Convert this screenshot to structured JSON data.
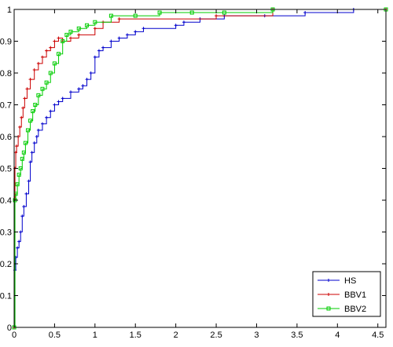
{
  "chart_data": {
    "type": "line",
    "title": "",
    "xlabel": "",
    "ylabel": "",
    "xlim": [
      0,
      4.6
    ],
    "ylim": [
      0,
      1
    ],
    "grid": false,
    "legend_position": "bottom-right",
    "xticks": [
      0,
      0.5,
      1,
      1.5,
      2,
      2.5,
      3,
      3.5,
      4,
      4.5
    ],
    "xtick_labels": [
      "0",
      "0.5",
      "1",
      "1.5",
      "2",
      "2.5",
      "3",
      "3.5",
      "4",
      "4.5"
    ],
    "yticks": [
      0,
      0.1,
      0.2,
      0.3,
      0.4,
      0.5,
      0.6,
      0.7,
      0.8,
      0.9,
      1
    ],
    "ytick_labels": [
      "0",
      "0.1",
      "0.2",
      "0.3",
      "0.4",
      "0.5",
      "0.6",
      "0.7",
      "0.8",
      "0.9",
      "1"
    ],
    "series": [
      {
        "name": "HS",
        "color": "#0000cc",
        "marker": "cross",
        "x": [
          0,
          0.01,
          0.02,
          0.04,
          0.06,
          0.08,
          0.1,
          0.12,
          0.15,
          0.18,
          0.2,
          0.22,
          0.25,
          0.28,
          0.3,
          0.35,
          0.4,
          0.45,
          0.5,
          0.55,
          0.6,
          0.7,
          0.8,
          0.85,
          0.9,
          0.95,
          1.0,
          1.05,
          1.1,
          1.2,
          1.3,
          1.4,
          1.5,
          1.6,
          2.0,
          2.1,
          2.3,
          2.6,
          3.1,
          3.6,
          4.2,
          4.6
        ],
        "y": [
          0,
          0.18,
          0.22,
          0.25,
          0.27,
          0.3,
          0.35,
          0.38,
          0.42,
          0.46,
          0.52,
          0.55,
          0.58,
          0.6,
          0.62,
          0.64,
          0.66,
          0.68,
          0.7,
          0.71,
          0.72,
          0.74,
          0.75,
          0.76,
          0.78,
          0.8,
          0.85,
          0.87,
          0.88,
          0.9,
          0.91,
          0.92,
          0.93,
          0.94,
          0.95,
          0.96,
          0.97,
          0.98,
          0.98,
          0.99,
          1.0,
          1.0
        ]
      },
      {
        "name": "BBV1",
        "color": "#cc0000",
        "marker": "cross",
        "x": [
          0,
          0.01,
          0.02,
          0.03,
          0.05,
          0.07,
          0.09,
          0.11,
          0.13,
          0.16,
          0.2,
          0.25,
          0.3,
          0.35,
          0.4,
          0.45,
          0.5,
          0.55,
          0.6,
          0.7,
          0.8,
          1.0,
          1.1,
          1.3,
          2.5,
          3.2,
          4.6
        ],
        "y": [
          0,
          0.5,
          0.55,
          0.57,
          0.6,
          0.63,
          0.66,
          0.69,
          0.72,
          0.75,
          0.78,
          0.81,
          0.83,
          0.85,
          0.87,
          0.88,
          0.9,
          0.91,
          0.9,
          0.91,
          0.92,
          0.94,
          0.96,
          0.97,
          0.98,
          1.0,
          1.0
        ]
      },
      {
        "name": "BBV2",
        "color": "#00cc00",
        "marker": "square",
        "x": [
          0,
          0.01,
          0.02,
          0.04,
          0.06,
          0.08,
          0.1,
          0.12,
          0.14,
          0.17,
          0.2,
          0.23,
          0.26,
          0.3,
          0.35,
          0.4,
          0.45,
          0.5,
          0.55,
          0.6,
          0.65,
          0.7,
          0.8,
          0.9,
          1.0,
          1.2,
          1.5,
          1.8,
          2.2,
          2.6,
          3.2,
          4.6
        ],
        "y": [
          0,
          0.4,
          0.42,
          0.45,
          0.48,
          0.5,
          0.53,
          0.55,
          0.58,
          0.62,
          0.65,
          0.68,
          0.7,
          0.73,
          0.75,
          0.77,
          0.8,
          0.83,
          0.86,
          0.9,
          0.92,
          0.93,
          0.94,
          0.95,
          0.96,
          0.98,
          0.98,
          0.99,
          0.99,
          0.99,
          1.0,
          1.0
        ]
      }
    ]
  }
}
